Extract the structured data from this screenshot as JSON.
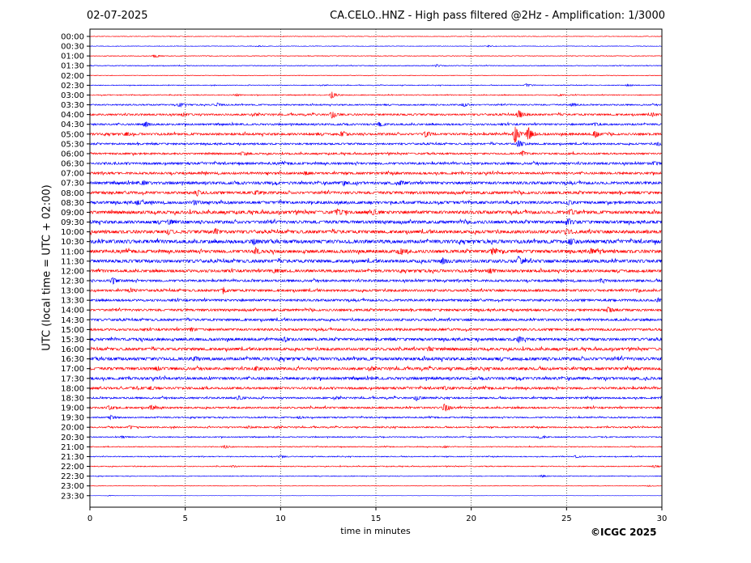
{
  "header": {
    "date": "02-07-2025",
    "title": "CA.CELO..HNZ - High pass filtered @2Hz - Amplification: 1/3000"
  },
  "footer": {
    "copyright": "©ICGC 2025"
  },
  "chart_data": {
    "type": "line",
    "title": "CA.CELO..HNZ - High pass filtered @2Hz - Amplification: 1/3000",
    "subtitle": "02-07-2025",
    "xlabel": "time in minutes",
    "ylabel": "UTC (local time = UTC + 02:00)",
    "xlim": [
      0,
      30
    ],
    "x_ticks": [
      "0",
      "5",
      "10",
      "15",
      "20",
      "25",
      "30"
    ],
    "x_tick_values": [
      0,
      5,
      10,
      15,
      20,
      25,
      30
    ],
    "grid": "vertical dotted at x ticks",
    "series_colors": [
      "#ff0000",
      "#0000ff"
    ],
    "rows": [
      {
        "label": "00:00",
        "color": "#ff0000",
        "noise": 0.6,
        "events": []
      },
      {
        "label": "00:30",
        "color": "#0000ff",
        "noise": 0.5,
        "events": [
          {
            "x": 8.9,
            "amp": 1.5
          },
          {
            "x": 20.9,
            "amp": 1.5
          }
        ]
      },
      {
        "label": "01:00",
        "color": "#ff0000",
        "noise": 0.7,
        "events": [
          {
            "x": 3.4,
            "amp": 4
          }
        ]
      },
      {
        "label": "01:30",
        "color": "#0000ff",
        "noise": 0.8,
        "events": [
          {
            "x": 18.2,
            "amp": 3
          }
        ]
      },
      {
        "label": "02:00",
        "color": "#ff0000",
        "noise": 0.6,
        "events": []
      },
      {
        "label": "02:30",
        "color": "#0000ff",
        "noise": 0.8,
        "events": [
          {
            "x": 22.9,
            "amp": 4
          },
          {
            "x": 28.2,
            "amp": 2.5
          }
        ]
      },
      {
        "label": "03:00",
        "color": "#ff0000",
        "noise": 1.0,
        "events": [
          {
            "x": 7.7,
            "amp": 2
          },
          {
            "x": 12.7,
            "amp": 10
          },
          {
            "x": 24.6,
            "amp": 2
          }
        ]
      },
      {
        "label": "03:30",
        "color": "#0000ff",
        "noise": 1.5,
        "events": [
          {
            "x": 4.7,
            "amp": 5
          },
          {
            "x": 6.7,
            "amp": 4
          },
          {
            "x": 19.6,
            "amp": 4
          },
          {
            "x": 25.3,
            "amp": 4
          }
        ]
      },
      {
        "label": "04:00",
        "color": "#ff0000",
        "noise": 2.0,
        "events": [
          {
            "x": 4.9,
            "amp": 4
          },
          {
            "x": 12.7,
            "amp": 8
          },
          {
            "x": 22.5,
            "amp": 12
          },
          {
            "x": 29.5,
            "amp": 4
          }
        ]
      },
      {
        "label": "04:30",
        "color": "#0000ff",
        "noise": 2.0,
        "events": [
          {
            "x": 2.9,
            "amp": 7
          },
          {
            "x": 15.2,
            "amp": 6
          },
          {
            "x": 26.5,
            "amp": 4
          }
        ]
      },
      {
        "label": "05:00",
        "color": "#ff0000",
        "noise": 2.5,
        "events": [
          {
            "x": 1.9,
            "amp": 4
          },
          {
            "x": 13.2,
            "amp": 6
          },
          {
            "x": 17.6,
            "amp": 7
          },
          {
            "x": 22.3,
            "amp": 22
          },
          {
            "x": 23.0,
            "amp": 18
          },
          {
            "x": 26.5,
            "amp": 9
          }
        ]
      },
      {
        "label": "05:30",
        "color": "#0000ff",
        "noise": 2.0,
        "events": [
          {
            "x": 22.5,
            "amp": 10
          },
          {
            "x": 29.8,
            "amp": 4
          }
        ]
      },
      {
        "label": "06:00",
        "color": "#ff0000",
        "noise": 2.0,
        "events": [
          {
            "x": 8.0,
            "amp": 4
          },
          {
            "x": 22.7,
            "amp": 6
          }
        ]
      },
      {
        "label": "06:30",
        "color": "#0000ff",
        "noise": 2.5,
        "events": [
          {
            "x": 29.6,
            "amp": 4
          }
        ]
      },
      {
        "label": "07:00",
        "color": "#ff0000",
        "noise": 2.5,
        "events": [
          {
            "x": 11.3,
            "amp": 4
          }
        ]
      },
      {
        "label": "07:30",
        "color": "#0000ff",
        "noise": 3.0,
        "events": [
          {
            "x": 2.8,
            "amp": 4
          },
          {
            "x": 13.3,
            "amp": 5
          },
          {
            "x": 16.3,
            "amp": 5
          }
        ]
      },
      {
        "label": "08:00",
        "color": "#ff0000",
        "noise": 3.0,
        "events": [
          {
            "x": 5.6,
            "amp": 7
          },
          {
            "x": 8.7,
            "amp": 5
          }
        ]
      },
      {
        "label": "08:30",
        "color": "#0000ff",
        "noise": 3.0,
        "events": [
          {
            "x": 2.5,
            "amp": 5
          },
          {
            "x": 5.5,
            "amp": 5
          },
          {
            "x": 25.1,
            "amp": 5
          }
        ]
      },
      {
        "label": "09:00",
        "color": "#ff0000",
        "noise": 3.5,
        "events": [
          {
            "x": 13.0,
            "amp": 6
          },
          {
            "x": 14.9,
            "amp": 6
          },
          {
            "x": 25.2,
            "amp": 6
          }
        ]
      },
      {
        "label": "09:30",
        "color": "#0000ff",
        "noise": 3.5,
        "events": [
          {
            "x": 4.2,
            "amp": 6
          },
          {
            "x": 25.1,
            "amp": 6
          }
        ]
      },
      {
        "label": "10:00",
        "color": "#ff0000",
        "noise": 3.5,
        "events": [
          {
            "x": 4.1,
            "amp": 6
          },
          {
            "x": 6.6,
            "amp": 6
          },
          {
            "x": 25.0,
            "amp": 6
          }
        ]
      },
      {
        "label": "10:30",
        "color": "#0000ff",
        "noise": 4.0,
        "events": [
          {
            "x": 8.6,
            "amp": 6
          },
          {
            "x": 25.2,
            "amp": 6
          }
        ]
      },
      {
        "label": "11:00",
        "color": "#ff0000",
        "noise": 3.5,
        "events": [
          {
            "x": 8.7,
            "amp": 8
          },
          {
            "x": 16.3,
            "amp": 7
          },
          {
            "x": 21.1,
            "amp": 8
          },
          {
            "x": 26.3,
            "amp": 6
          }
        ]
      },
      {
        "label": "11:30",
        "color": "#0000ff",
        "noise": 3.5,
        "events": [
          {
            "x": 18.5,
            "amp": 6
          },
          {
            "x": 22.5,
            "amp": 9
          }
        ]
      },
      {
        "label": "12:00",
        "color": "#ff0000",
        "noise": 3.0,
        "events": [
          {
            "x": 9.7,
            "amp": 5
          },
          {
            "x": 21.0,
            "amp": 5
          }
        ]
      },
      {
        "label": "12:30",
        "color": "#0000ff",
        "noise": 2.5,
        "events": [
          {
            "x": 1.2,
            "amp": 7
          },
          {
            "x": 26.8,
            "amp": 4
          }
        ]
      },
      {
        "label": "13:00",
        "color": "#ff0000",
        "noise": 2.5,
        "events": [
          {
            "x": 2.1,
            "amp": 5
          },
          {
            "x": 7.0,
            "amp": 5
          },
          {
            "x": 28.6,
            "amp": 4
          }
        ]
      },
      {
        "label": "13:30",
        "color": "#0000ff",
        "noise": 2.5,
        "events": [
          {
            "x": 29.8,
            "amp": 4
          }
        ]
      },
      {
        "label": "14:00",
        "color": "#ff0000",
        "noise": 2.5,
        "events": [
          {
            "x": 27.2,
            "amp": 7
          }
        ]
      },
      {
        "label": "14:30",
        "color": "#0000ff",
        "noise": 2.5,
        "events": []
      },
      {
        "label": "15:00",
        "color": "#ff0000",
        "noise": 2.5,
        "events": [
          {
            "x": 5.3,
            "amp": 4
          }
        ]
      },
      {
        "label": "15:30",
        "color": "#0000ff",
        "noise": 3.0,
        "events": [
          {
            "x": 10.2,
            "amp": 4
          },
          {
            "x": 22.5,
            "amp": 7
          }
        ]
      },
      {
        "label": "16:00",
        "color": "#ff0000",
        "noise": 3.0,
        "events": [
          {
            "x": 17.8,
            "amp": 5
          }
        ]
      },
      {
        "label": "16:30",
        "color": "#0000ff",
        "noise": 3.5,
        "events": [
          {
            "x": 5.5,
            "amp": 4
          }
        ]
      },
      {
        "label": "17:00",
        "color": "#ff0000",
        "noise": 3.0,
        "events": [
          {
            "x": 3.5,
            "amp": 4
          },
          {
            "x": 8.7,
            "amp": 4
          }
        ]
      },
      {
        "label": "17:30",
        "color": "#0000ff",
        "noise": 3.0,
        "events": []
      },
      {
        "label": "18:00",
        "color": "#ff0000",
        "noise": 2.5,
        "events": [
          {
            "x": 3.2,
            "amp": 4
          },
          {
            "x": 18.6,
            "amp": 4
          }
        ]
      },
      {
        "label": "18:30",
        "color": "#0000ff",
        "noise": 2.0,
        "events": [
          {
            "x": 7.8,
            "amp": 5
          },
          {
            "x": 17.1,
            "amp": 5
          }
        ]
      },
      {
        "label": "19:00",
        "color": "#ff0000",
        "noise": 2.0,
        "events": [
          {
            "x": 1.0,
            "amp": 5
          },
          {
            "x": 3.2,
            "amp": 6
          },
          {
            "x": 18.6,
            "amp": 12
          }
        ]
      },
      {
        "label": "19:30",
        "color": "#0000ff",
        "noise": 1.5,
        "events": [
          {
            "x": 1.1,
            "amp": 5
          },
          {
            "x": 11.0,
            "amp": 3
          }
        ]
      },
      {
        "label": "20:00",
        "color": "#ff0000",
        "noise": 1.5,
        "events": [
          {
            "x": 2.1,
            "amp": 4
          },
          {
            "x": 8.3,
            "amp": 3
          }
        ]
      },
      {
        "label": "20:30",
        "color": "#0000ff",
        "noise": 1.2,
        "events": [
          {
            "x": 1.7,
            "amp": 3
          },
          {
            "x": 23.6,
            "amp": 3
          }
        ]
      },
      {
        "label": "21:00",
        "color": "#ff0000",
        "noise": 1.0,
        "events": [
          {
            "x": 7.1,
            "amp": 4
          },
          {
            "x": 18.6,
            "amp": 2
          }
        ]
      },
      {
        "label": "21:30",
        "color": "#0000ff",
        "noise": 1.0,
        "events": [
          {
            "x": 10.0,
            "amp": 3
          },
          {
            "x": 25.5,
            "amp": 3
          }
        ]
      },
      {
        "label": "22:00",
        "color": "#ff0000",
        "noise": 1.0,
        "events": [
          {
            "x": 7.5,
            "amp": 2
          },
          {
            "x": 29.6,
            "amp": 3
          }
        ]
      },
      {
        "label": "22:30",
        "color": "#0000ff",
        "noise": 0.8,
        "events": [
          {
            "x": 23.7,
            "amp": 2.5
          }
        ]
      },
      {
        "label": "23:00",
        "color": "#ff0000",
        "noise": 0.5,
        "events": [
          {
            "x": 29.3,
            "amp": 1.5
          }
        ]
      },
      {
        "label": "23:30",
        "color": "#0000ff",
        "noise": 0.2,
        "events": [
          {
            "x": 1.0,
            "amp": 1
          }
        ]
      }
    ]
  }
}
